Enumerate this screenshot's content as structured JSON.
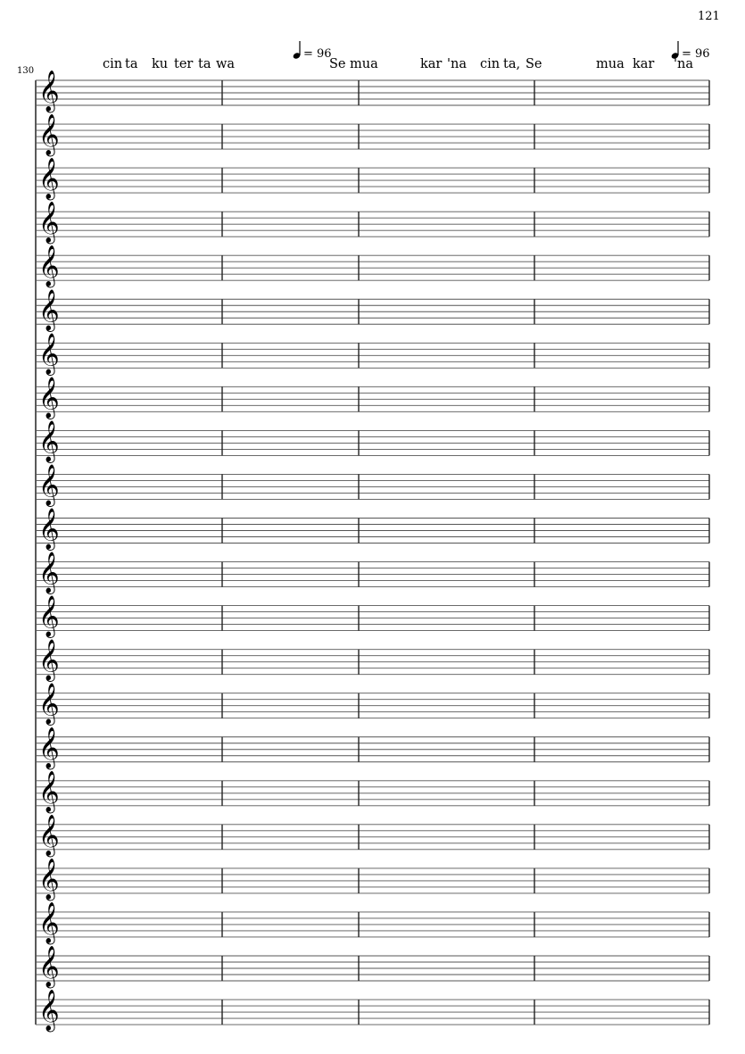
{
  "page_number": "121",
  "measure_number": "130",
  "tempo_marks": [
    {
      "note": "quarter-note-icon",
      "text": "= 96"
    },
    {
      "note": "quarter-note-icon",
      "text": "= 96"
    }
  ],
  "lyrics": [
    "cin",
    "ta",
    "ku",
    "ter",
    "ta",
    "wa",
    "Se",
    "mua",
    "kar",
    "'na",
    "cin",
    "ta,",
    "Se",
    "mua",
    "kar",
    "'na"
  ],
  "clef": "treble-clef-icon",
  "staff_count": 22,
  "measures_per_staff": 4
}
